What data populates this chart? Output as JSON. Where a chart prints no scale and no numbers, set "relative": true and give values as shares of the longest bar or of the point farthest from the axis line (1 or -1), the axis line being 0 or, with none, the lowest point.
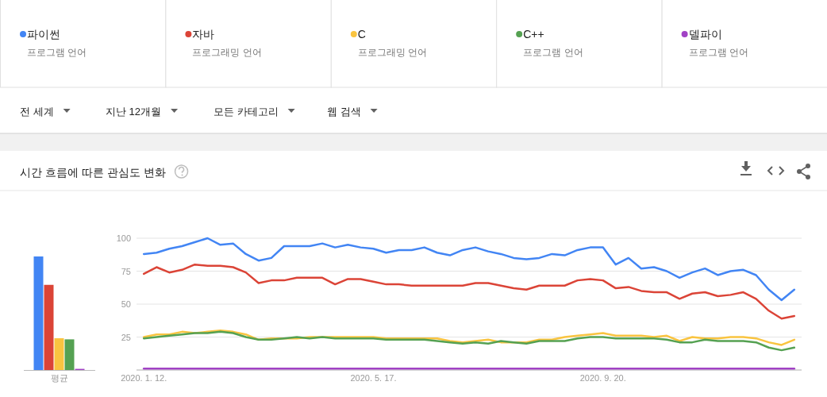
{
  "chart_data": [
    {
      "type": "bar",
      "relative": true,
      "categories": [
        "평균"
      ],
      "series": [
        {
          "color": "#4285f4",
          "values": [
            1
          ]
        },
        {
          "color": "#db4437",
          "values": [
            0.75
          ]
        },
        {
          "color": "#f9c440",
          "values": [
            0.28
          ]
        },
        {
          "color": "#55a152",
          "values": [
            0.27
          ]
        },
        {
          "color": "#a142c5",
          "values": [
            0.01
          ]
        }
      ]
    },
    {
      "type": "line",
      "title": "시간 흐름에 따른 관심도 변화",
      "legend": "top",
      "grid": "y",
      "annotations": [
        "프로그램 언어",
        "프로그래밍 언어",
        "프로그래밍 언어",
        "프로그램 언어",
        "프로그램 언어",
        "전 세계",
        "지난 12개월",
        "모든 카테고리",
        "웹 검색"
      ],
      "x": [
        "2020-01-12",
        "2020-01-19",
        "2020-01-26",
        "2020-02-02",
        "2020-02-09",
        "2020-02-16",
        "2020-02-23",
        "2020-03-01",
        "2020-03-08",
        "2020-03-15",
        "2020-03-22",
        "2020-03-29",
        "2020-04-05",
        "2020-04-12",
        "2020-04-19",
        "2020-04-26",
        "2020-05-03",
        "2020-05-10",
        "2020-05-17",
        "2020-05-24",
        "2020-05-31",
        "2020-06-07",
        "2020-06-14",
        "2020-06-21",
        "2020-06-28",
        "2020-07-05",
        "2020-07-12",
        "2020-07-19",
        "2020-07-26",
        "2020-08-02",
        "2020-08-09",
        "2020-08-16",
        "2020-08-23",
        "2020-08-30",
        "2020-09-06",
        "2020-09-13",
        "2020-09-20",
        "2020-09-27",
        "2020-10-04",
        "2020-10-11",
        "2020-10-18",
        "2020-10-25",
        "2020-11-01",
        "2020-11-08",
        "2020-11-15",
        "2020-11-22",
        "2020-11-29",
        "2020-12-06",
        "2020-12-13",
        "2020-12-20",
        "2020-12-27",
        "2021-01-03"
      ],
      "xlim": [
        "2020-01-08",
        "2021-01-07"
      ],
      "xticks": [
        {
          "value": "2020-01-12",
          "label": "2020. 1. 12."
        },
        {
          "value": "2020-05-17",
          "label": "2020. 5. 17."
        },
        {
          "value": "2020-09-20",
          "label": "2020. 9. 20."
        }
      ],
      "ylim": [
        0,
        100
      ],
      "yticks": [
        {
          "value": 0,
          "label": null
        },
        25,
        50,
        75,
        100
      ],
      "series": [
        {
          "name": "파이썬",
          "color": "#4285f4",
          "values": [
            88,
            89,
            92,
            94,
            97,
            100,
            95,
            96,
            88,
            83,
            85,
            94,
            94,
            94,
            96,
            93,
            95,
            93,
            92,
            89,
            91,
            91,
            93,
            89,
            87,
            91,
            93,
            90,
            88,
            85,
            84,
            85,
            88,
            87,
            91,
            93,
            93,
            80,
            85,
            77,
            78,
            75,
            70,
            74,
            77,
            72,
            75,
            76,
            72,
            61,
            53,
            61
          ]
        },
        {
          "name": "자바",
          "color": "#db4437",
          "values": [
            73,
            78,
            74,
            76,
            80,
            79,
            79,
            78,
            74,
            66,
            68,
            68,
            70,
            70,
            70,
            65,
            69,
            69,
            67,
            65,
            65,
            64,
            64,
            64,
            64,
            64,
            66,
            66,
            64,
            62,
            61,
            64,
            64,
            64,
            68,
            69,
            68,
            62,
            63,
            60,
            59,
            59,
            54,
            58,
            59,
            56,
            57,
            59,
            54,
            45,
            39,
            41
          ]
        },
        {
          "name": "C",
          "color": "#f9c440",
          "values": [
            25,
            27,
            27,
            29,
            28,
            29,
            30,
            29,
            27,
            23,
            24,
            24,
            24,
            25,
            25,
            25,
            25,
            25,
            25,
            24,
            24,
            24,
            24,
            24,
            22,
            21,
            22,
            23,
            21,
            21,
            21,
            23,
            23,
            25,
            26,
            27,
            28,
            26,
            26,
            26,
            25,
            26,
            22,
            25,
            24,
            24,
            25,
            25,
            24,
            21,
            19,
            23
          ]
        },
        {
          "name": "C++",
          "color": "#55a152",
          "values": [
            24,
            25,
            26,
            27,
            28,
            28,
            29,
            28,
            25,
            23,
            23,
            24,
            25,
            24,
            25,
            24,
            24,
            24,
            24,
            23,
            23,
            23,
            23,
            22,
            21,
            20,
            21,
            20,
            22,
            21,
            20,
            22,
            22,
            22,
            24,
            25,
            25,
            24,
            24,
            24,
            24,
            23,
            21,
            21,
            23,
            22,
            22,
            22,
            21,
            17,
            15,
            17
          ]
        },
        {
          "name": "델파이",
          "color": "#a142c5",
          "values": [
            1,
            1,
            1,
            1,
            1,
            1,
            1,
            1,
            1,
            1,
            1,
            1,
            1,
            1,
            1,
            1,
            1,
            1,
            1,
            1,
            1,
            1,
            1,
            1,
            1,
            1,
            1,
            1,
            1,
            1,
            1,
            1,
            1,
            1,
            1,
            1,
            1,
            1,
            1,
            1,
            1,
            1,
            1,
            1,
            1,
            1,
            1,
            1,
            1,
            1,
            1,
            1
          ]
        }
      ]
    }
  ]
}
